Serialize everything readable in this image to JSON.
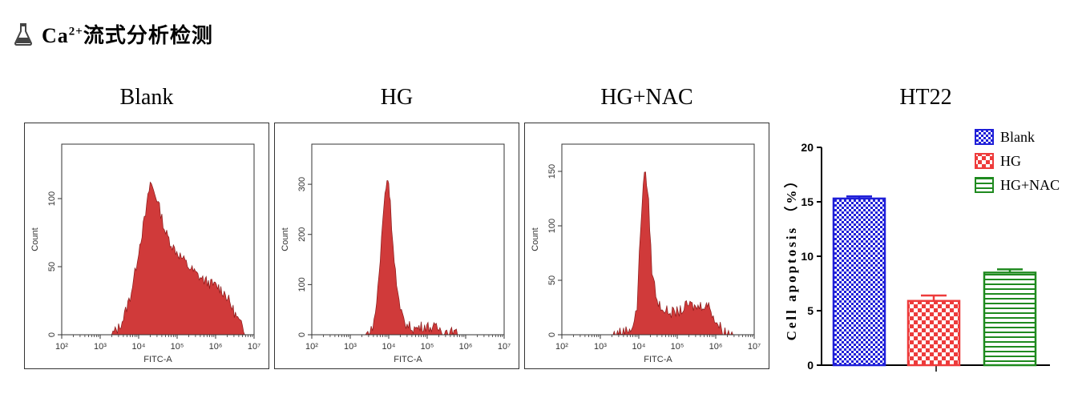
{
  "header": {
    "title_prefix": "Ca",
    "title_sup": "2+",
    "title_suffix": "流式分析检测",
    "icon": "flask-icon"
  },
  "chart_data": [
    {
      "type": "area",
      "title": "Blank",
      "xlabel": "FITC-A",
      "ylabel": "Count",
      "xscale": "log",
      "xlim": [
        100,
        10000000
      ],
      "ylim": [
        0,
        140
      ],
      "xticks": [
        "10²",
        "10³",
        "10⁴",
        "10⁵",
        "10⁶",
        "10⁷"
      ],
      "yticks": [
        0,
        50,
        100
      ],
      "color": "#d03a3a",
      "x": [
        2000,
        3000,
        4000,
        6000,
        8000,
        10000,
        15000,
        20000,
        30000,
        50000,
        80000,
        120000,
        200000,
        300000,
        500000,
        800000,
        1200000,
        1800000,
        2500000,
        3500000,
        5000000,
        7000000
      ],
      "y": [
        0,
        5,
        12,
        28,
        45,
        62,
        88,
        112,
        100,
        75,
        64,
        58,
        50,
        45,
        40,
        37,
        35,
        30,
        22,
        13,
        5,
        0
      ]
    },
    {
      "type": "area",
      "title": "HG",
      "xlabel": "FITC-A",
      "ylabel": "Count",
      "xscale": "log",
      "xlim": [
        100,
        10000000
      ],
      "ylim": [
        0,
        380
      ],
      "xticks": [
        "10²",
        "10³",
        "10⁴",
        "10⁵",
        "10⁶",
        "10⁷"
      ],
      "yticks": [
        0,
        100,
        200,
        300
      ],
      "color": "#d03a3a",
      "x": [
        2500,
        3500,
        4500,
        6000,
        7000,
        8000,
        9000,
        10000,
        11000,
        13000,
        16000,
        20000,
        30000,
        50000,
        80000,
        120000,
        200000,
        300000,
        500000,
        700000
      ],
      "y": [
        0,
        8,
        40,
        150,
        230,
        280,
        310,
        305,
        260,
        180,
        100,
        45,
        18,
        12,
        18,
        15,
        12,
        8,
        3,
        0
      ]
    },
    {
      "type": "area",
      "title": "HG+NAC",
      "xlabel": "FITC-A",
      "ylabel": "Count",
      "xscale": "log",
      "xlim": [
        100,
        10000000
      ],
      "ylim": [
        0,
        175
      ],
      "xticks": [
        "10²",
        "10³",
        "10⁴",
        "10⁵",
        "10⁶",
        "10⁷"
      ],
      "yticks": [
        0,
        50,
        100,
        150
      ],
      "color": "#d03a3a",
      "x": [
        2000,
        3000,
        5000,
        7000,
        9000,
        11000,
        13000,
        15000,
        18000,
        22000,
        30000,
        50000,
        80000,
        120000,
        200000,
        300000,
        500000,
        700000,
        1000000,
        1500000,
        2000000,
        3000000
      ],
      "y": [
        0,
        2,
        4,
        8,
        25,
        95,
        140,
        150,
        120,
        60,
        30,
        22,
        20,
        22,
        28,
        25,
        28,
        26,
        12,
        5,
        2,
        0
      ]
    },
    {
      "type": "bar",
      "title": "HT22",
      "ylabel": "Cell apoptosis （%）",
      "categories": [
        "Blank",
        "HG",
        "HG+NAC"
      ],
      "values": [
        15.3,
        5.9,
        8.5
      ],
      "errors": [
        0.2,
        0.5,
        0.3
      ],
      "ylim": [
        0,
        20
      ],
      "yticks": [
        0,
        5,
        10,
        15,
        20
      ],
      "colors": [
        "#1f1fd8",
        "#ee3b3b",
        "#1f8a1f"
      ],
      "legend_position": "top-right"
    }
  ]
}
